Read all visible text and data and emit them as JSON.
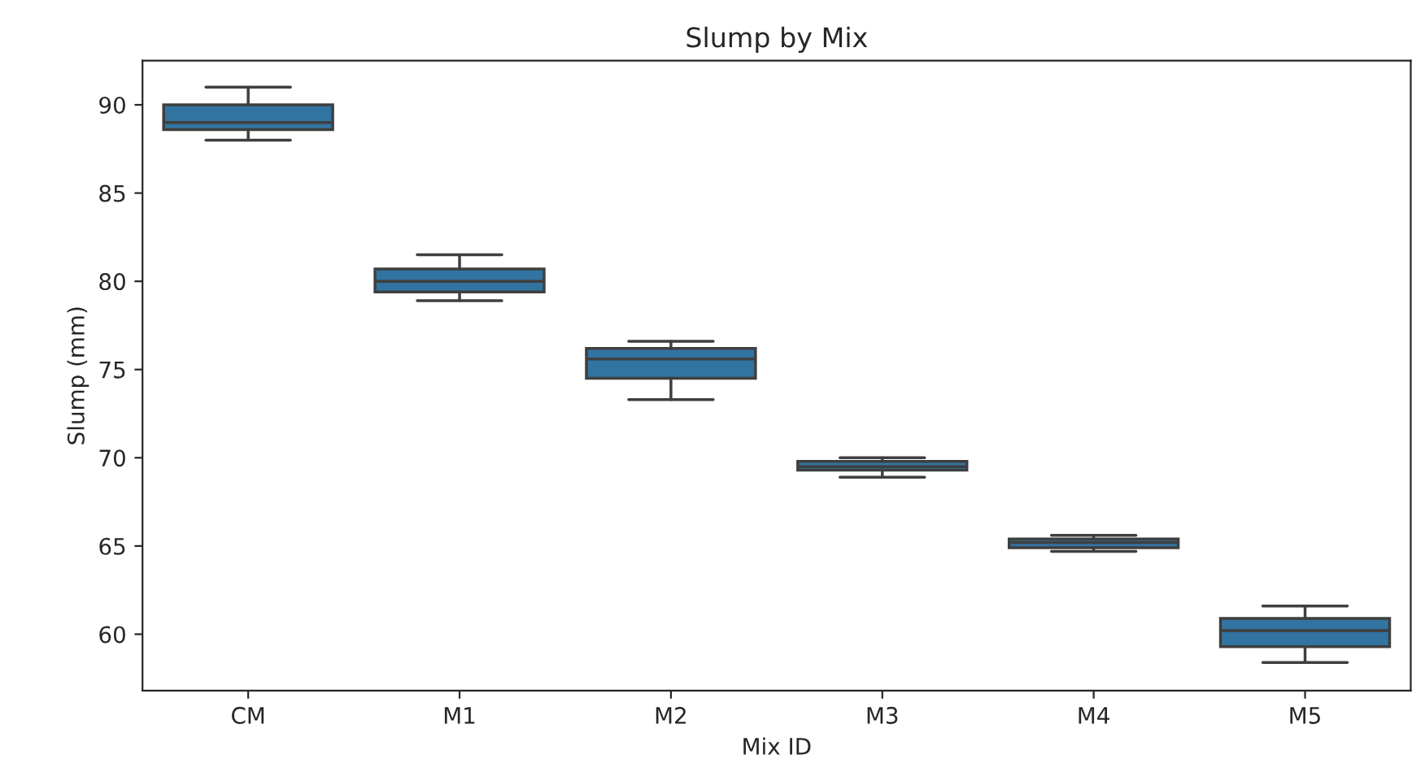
{
  "chart_data": {
    "type": "box",
    "title": "Slump by Mix",
    "xlabel": "Mix ID",
    "ylabel": "Slump (mm)",
    "categories": [
      "CM",
      "M1",
      "M2",
      "M3",
      "M4",
      "M5"
    ],
    "color": "#3274a1",
    "boxes": [
      {
        "low": 88.0,
        "q1": 88.6,
        "median": 89.0,
        "q3": 90.0,
        "high": 91.0
      },
      {
        "low": 78.9,
        "q1": 79.4,
        "median": 80.0,
        "q3": 80.7,
        "high": 81.5
      },
      {
        "low": 73.3,
        "q1": 74.5,
        "median": 75.6,
        "q3": 76.2,
        "high": 76.6
      },
      {
        "low": 68.9,
        "q1": 69.3,
        "median": 69.5,
        "q3": 69.8,
        "high": 70.0
      },
      {
        "low": 64.7,
        "q1": 64.9,
        "median": 65.2,
        "q3": 65.4,
        "high": 65.6
      },
      {
        "low": 58.4,
        "q1": 59.3,
        "median": 60.2,
        "q3": 60.9,
        "high": 61.6
      }
    ],
    "ylim": [
      56.8,
      92.5
    ],
    "yticks": [
      60,
      65,
      70,
      75,
      80,
      85,
      90
    ],
    "grid": false,
    "legend": false
  }
}
